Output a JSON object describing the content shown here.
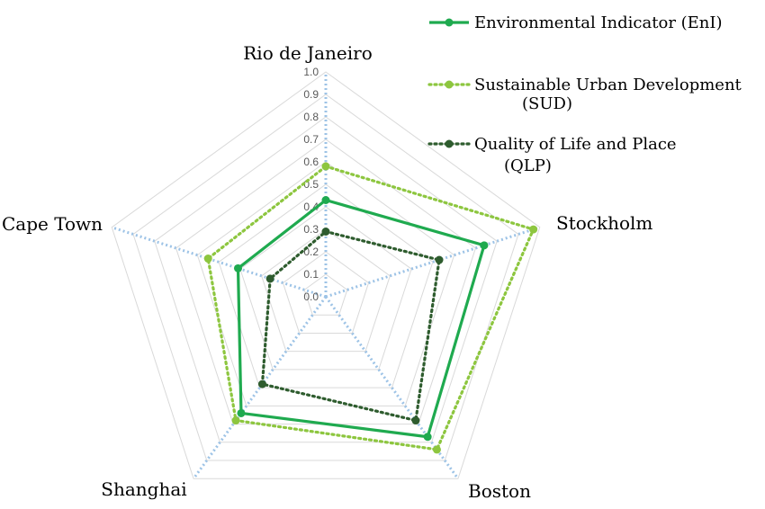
{
  "chart_data": {
    "type": "radar",
    "categories": [
      "Rio de Janeiro",
      "Stockholm",
      "Boston",
      "Shanghai",
      "Cape Town"
    ],
    "rlim": [
      0,
      1.0
    ],
    "ticks": [
      "0.0",
      "0.1",
      "0.2",
      "0.3",
      "0.4",
      "0.5",
      "0.6",
      "0.7",
      "0.8",
      "0.9",
      "1.0"
    ],
    "grid": true,
    "legend_position": "top-right",
    "series": [
      {
        "name": "Environmental Indicator (EnI)",
        "line1": "Environmental Indicator (EnI)",
        "line2": "",
        "color": "#1faa4f",
        "dash": "solid",
        "values": [
          0.43,
          0.74,
          0.77,
          0.64,
          0.41
        ]
      },
      {
        "name": "Sustainable Urban Development (SUD)",
        "line1": "Sustainable Urban Development",
        "line2": "(SUD)",
        "color": "#8dc63f",
        "dash": "dotted",
        "values": [
          0.58,
          0.97,
          0.84,
          0.68,
          0.55
        ]
      },
      {
        "name": "Quality of Life and Place (QLP)",
        "line1": "Quality of Life and Place",
        "line2": "(QLP)",
        "color": "#2e5c2e",
        "dash": "dotted",
        "values": [
          0.29,
          0.53,
          0.68,
          0.48,
          0.26
        ]
      }
    ]
  }
}
